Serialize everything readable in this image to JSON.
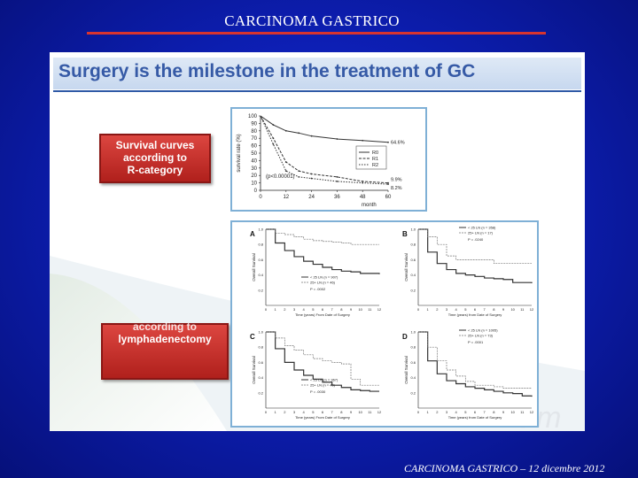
{
  "slide": {
    "title": "CARCINOMA GASTRICO",
    "footer": "CARCINOMA GASTRICO – 12 dicembre 2012"
  },
  "panel": {
    "headline": "Surgery is the milestone in the treatment of GC",
    "box1_line1": "Survival curves",
    "box1_line2": "according to",
    "box1_line3": "R-category",
    "box2_cut_line": "according to",
    "box2_line": "lymphadenectomy",
    "watermark": "AOm"
  },
  "colors": {
    "background": "#0d1fb5",
    "title_rule": "#d8342f",
    "headline": "#365aa6",
    "red_box": "#c52a25",
    "chart_frame": "#7fb0d6"
  },
  "chart_data": [
    {
      "type": "line",
      "ylabel": "survival rate (%)",
      "xlabel": "month",
      "x": [
        0,
        12,
        24,
        36,
        48,
        60
      ],
      "x_ticks": [
        "0",
        "12",
        "24",
        "36",
        "48",
        "60"
      ],
      "y_ticks": [
        "0",
        "10",
        "20",
        "30",
        "40",
        "50",
        "60",
        "70",
        "80",
        "90",
        "100"
      ],
      "ylim": [
        0,
        100
      ],
      "xlim": [
        0,
        60
      ],
      "annotation": "(p<0.00001)",
      "series": [
        {
          "name": "R0",
          "x": [
            0,
            6,
            12,
            18,
            24,
            36,
            48,
            60
          ],
          "values": [
            100,
            88,
            80,
            77,
            73,
            69,
            67,
            64.6
          ],
          "end_label": "64.6%"
        },
        {
          "name": "R1",
          "x": [
            0,
            6,
            12,
            18,
            24,
            36,
            48,
            60
          ],
          "values": [
            100,
            70,
            38,
            26,
            22,
            18,
            12,
            9.9
          ],
          "end_label": "9.9%"
        },
        {
          "name": "R2",
          "x": [
            0,
            6,
            12,
            18,
            24,
            36,
            48,
            60
          ],
          "values": [
            100,
            62,
            26,
            18,
            16,
            12,
            10,
            8.2
          ],
          "end_label": "8.2%"
        }
      ]
    },
    {
      "type": "line",
      "ylabel": "Overall Survival",
      "x_ticks": [
        "0",
        "1",
        "2",
        "3",
        "4",
        "5",
        "6",
        "7",
        "8",
        "9",
        "10",
        "11",
        "12"
      ],
      "y_ticks": [
        "0.2",
        "0.4",
        "0.6",
        "0.8",
        "1.0"
      ],
      "ylim": [
        0,
        1
      ],
      "xlim": [
        0,
        12
      ],
      "panels": [
        {
          "letter": "A",
          "xlabel": "Time (years) From Date of Surgery",
          "legend": [
            "< 25 LN (n = 907)",
            "25+ LN (n = 46)"
          ],
          "pvalue": "P = .0002",
          "series": [
            {
              "name": "< 25 LN (n = 907)",
              "x": [
                0,
                1,
                2,
                3,
                4,
                5,
                6,
                7,
                8,
                9,
                10,
                11,
                12
              ],
              "values": [
                1,
                0.82,
                0.72,
                0.64,
                0.58,
                0.54,
                0.5,
                0.47,
                0.45,
                0.44,
                0.42,
                0.42,
                0.41
              ]
            },
            {
              "name": "25+ LN (n = 46)",
              "x": [
                0,
                1,
                2,
                3,
                4,
                5,
                6,
                7,
                8,
                9,
                10,
                11,
                12
              ],
              "values": [
                1,
                0.95,
                0.93,
                0.9,
                0.87,
                0.85,
                0.84,
                0.83,
                0.82,
                0.8,
                0.8,
                0.8,
                0.8
              ]
            }
          ]
        },
        {
          "letter": "B",
          "xlabel": "Time (years) from Date of Surgery",
          "legend": [
            "< 25 LN (n = 358)",
            "25+ LN (n = 17)"
          ],
          "pvalue": "P = .0240",
          "series": [
            {
              "name": "< 25 LN (n = 358)",
              "x": [
                0,
                1,
                2,
                3,
                4,
                5,
                6,
                7,
                8,
                9,
                10,
                11,
                12
              ],
              "values": [
                1,
                0.7,
                0.55,
                0.47,
                0.42,
                0.4,
                0.38,
                0.36,
                0.35,
                0.34,
                0.3,
                0.3,
                0.29
              ]
            },
            {
              "name": "25+ LN (n = 17)",
              "x": [
                0,
                1,
                2,
                3,
                4,
                5,
                6,
                7,
                8,
                9,
                10,
                11,
                12
              ],
              "values": [
                1,
                0.9,
                0.8,
                0.65,
                0.6,
                0.6,
                0.6,
                0.6,
                0.55,
                0.55,
                0.55,
                0.55,
                0.55
              ]
            }
          ]
        },
        {
          "letter": "C",
          "xlabel": "Time (years) From Date of Surgery",
          "legend": [
            "< 25 LN (n = 367)",
            "25+ LN (n = 40)"
          ],
          "pvalue": "P = .0030",
          "series": [
            {
              "name": "< 25 LN (n = 367)",
              "x": [
                0,
                1,
                2,
                3,
                4,
                5,
                6,
                7,
                8,
                9,
                10,
                11,
                12
              ],
              "values": [
                1,
                0.78,
                0.6,
                0.5,
                0.43,
                0.38,
                0.34,
                0.3,
                0.27,
                0.24,
                0.23,
                0.22,
                0.22
              ]
            },
            {
              "name": "25+ LN (n = 40)",
              "x": [
                0,
                1,
                2,
                3,
                4,
                5,
                6,
                7,
                8,
                9,
                10,
                11,
                12
              ],
              "values": [
                1,
                0.92,
                0.82,
                0.76,
                0.7,
                0.65,
                0.62,
                0.6,
                0.58,
                0.38,
                0.3,
                0.3,
                0.3
              ]
            }
          ]
        },
        {
          "letter": "D",
          "xlabel": "Time (years) from Date of Surgery",
          "legend": [
            "< 25 LN (n = 1005)",
            "25+ LN (n = 73)"
          ],
          "pvalue": "P = .0001",
          "series": [
            {
              "name": "< 25 LN (n = 1005)",
              "x": [
                0,
                1,
                2,
                3,
                4,
                5,
                6,
                7,
                8,
                9,
                10,
                11,
                12
              ],
              "values": [
                1,
                0.62,
                0.45,
                0.36,
                0.32,
                0.28,
                0.26,
                0.24,
                0.22,
                0.2,
                0.19,
                0.16,
                0.15
              ]
            },
            {
              "name": "25+ LN (n = 73)",
              "x": [
                0,
                1,
                2,
                3,
                4,
                5,
                6,
                7,
                8,
                9,
                10,
                11,
                12
              ],
              "values": [
                1,
                0.8,
                0.62,
                0.5,
                0.42,
                0.35,
                0.3,
                0.3,
                0.28,
                0.26,
                0.26,
                0.26,
                0.26
              ]
            }
          ]
        }
      ]
    }
  ]
}
